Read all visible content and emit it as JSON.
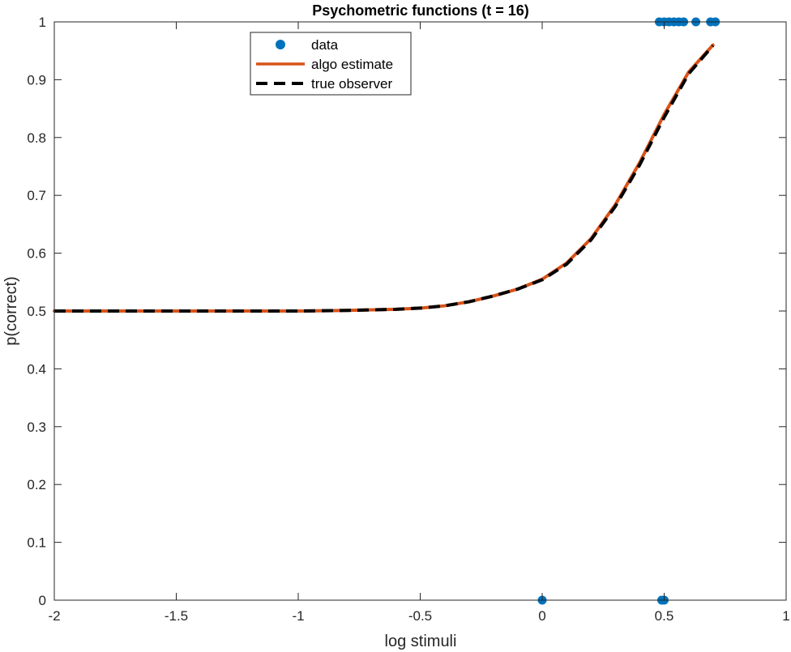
{
  "chart_data": {
    "type": "line",
    "title": "Psychometric functions (t = 16)",
    "xlabel": "log stimuli",
    "ylabel": "p(correct)",
    "xlim": [
      -2,
      1
    ],
    "ylim": [
      0,
      1
    ],
    "xticks": [
      -2,
      -1.5,
      -1,
      -0.5,
      0,
      0.5,
      1
    ],
    "xtick_labels": [
      "-2",
      "-1.5",
      "-1",
      "-0.5",
      "0",
      "0.5",
      "1"
    ],
    "yticks": [
      0,
      0.1,
      0.2,
      0.3,
      0.4,
      0.5,
      0.6,
      0.7,
      0.8,
      0.9,
      1
    ],
    "ytick_labels": [
      "0",
      "0.1",
      "0.2",
      "0.3",
      "0.4",
      "0.5",
      "0.6",
      "0.7",
      "0.8",
      "0.9",
      "1"
    ],
    "grid": false,
    "legend_position": "top-center",
    "series": [
      {
        "name": "data",
        "kind": "scatter",
        "color": "#0072BD",
        "points": [
          {
            "x": 0.0,
            "y": 0
          },
          {
            "x": 0.49,
            "y": 0
          },
          {
            "x": 0.5,
            "y": 0
          },
          {
            "x": 0.48,
            "y": 1
          },
          {
            "x": 0.5,
            "y": 1
          },
          {
            "x": 0.52,
            "y": 1
          },
          {
            "x": 0.54,
            "y": 1
          },
          {
            "x": 0.56,
            "y": 1
          },
          {
            "x": 0.58,
            "y": 1
          },
          {
            "x": 0.63,
            "y": 1
          },
          {
            "x": 0.69,
            "y": 1
          },
          {
            "x": 0.71,
            "y": 1
          }
        ]
      },
      {
        "name": "algo estimate",
        "kind": "line",
        "style": "solid",
        "color": "#D95319",
        "x": [
          -2.0,
          -1.8,
          -1.6,
          -1.4,
          -1.2,
          -1.0,
          -0.8,
          -0.6,
          -0.5,
          -0.4,
          -0.3,
          -0.2,
          -0.1,
          0.0,
          0.1,
          0.2,
          0.3,
          0.4,
          0.5,
          0.6,
          0.7
        ],
        "y": [
          0.5,
          0.5,
          0.5,
          0.5,
          0.5,
          0.5,
          0.501,
          0.503,
          0.505,
          0.509,
          0.516,
          0.526,
          0.538,
          0.555,
          0.583,
          0.625,
          0.684,
          0.757,
          0.84,
          0.913,
          0.96
        ]
      },
      {
        "name": "true observer",
        "kind": "line",
        "style": "dashed",
        "color": "#000000",
        "x": [
          -2.0,
          -1.8,
          -1.6,
          -1.4,
          -1.2,
          -1.0,
          -0.8,
          -0.6,
          -0.5,
          -0.4,
          -0.3,
          -0.2,
          -0.1,
          0.0,
          0.1,
          0.2,
          0.3,
          0.4,
          0.5,
          0.6,
          0.7
        ],
        "y": [
          0.5,
          0.5,
          0.5,
          0.5,
          0.5,
          0.5,
          0.501,
          0.503,
          0.505,
          0.509,
          0.516,
          0.526,
          0.538,
          0.554,
          0.581,
          0.623,
          0.681,
          0.753,
          0.835,
          0.91,
          0.959
        ]
      }
    ]
  }
}
